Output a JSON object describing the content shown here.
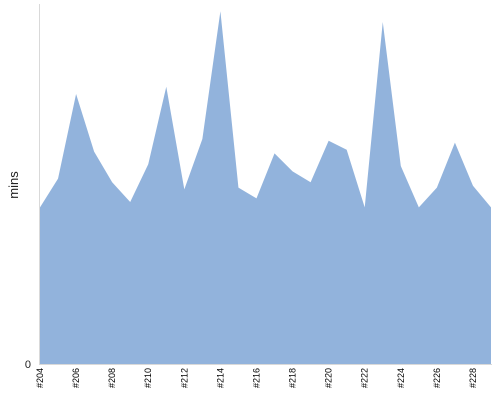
{
  "chart_data": {
    "type": "area",
    "title": "",
    "xlabel": "",
    "ylabel": "mins",
    "categories": [
      "#204",
      "#205",
      "#206",
      "#207",
      "#208",
      "#209",
      "#210",
      "#211",
      "#212",
      "#213",
      "#214",
      "#215",
      "#216",
      "#217",
      "#218",
      "#219",
      "#220",
      "#221",
      "#222",
      "#223",
      "#224",
      "#225",
      "#226",
      "#227",
      "#228",
      "#229"
    ],
    "x_tick_labels": [
      "#204",
      "#206",
      "#208",
      "#210",
      "#212",
      "#214",
      "#216",
      "#218",
      "#220",
      "#222",
      "#224",
      "#226",
      "#228"
    ],
    "values": [
      43.5,
      51.5,
      75.0,
      59.0,
      50.5,
      45.0,
      55.5,
      77.0,
      48.5,
      62.5,
      98.0,
      49.0,
      46.0,
      58.5,
      53.5,
      50.5,
      62.0,
      59.5,
      43.5,
      95.0,
      55.0,
      43.5,
      49.0,
      61.5,
      49.5,
      43.5
    ],
    "ylim": [
      0,
      100
    ],
    "y_tick_labels": [
      "0"
    ],
    "fill_color": "#92b3dc",
    "grid": false,
    "legend": "none"
  }
}
